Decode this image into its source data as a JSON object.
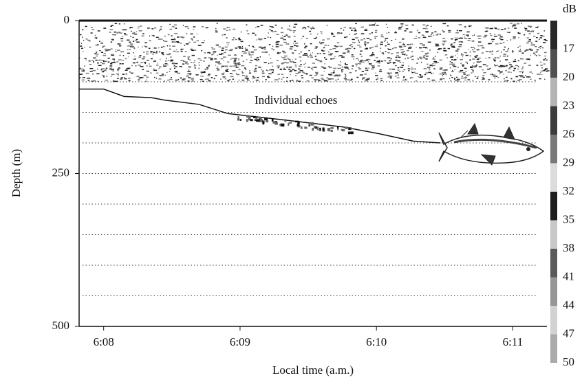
{
  "chart_data": {
    "type": "echogram",
    "ylabel": "Depth (m)",
    "xlabel": "Local time (a.m.)",
    "annotation": "Individual echoes",
    "ylim": [
      0,
      500
    ],
    "yticks": [
      0,
      250,
      500
    ],
    "inverted_y": true,
    "hgrid": [
      100,
      150,
      200,
      250,
      300,
      350,
      400,
      450
    ],
    "xlim": [
      367.82,
      371.25
    ],
    "xticks": [
      {
        "value": 368,
        "label": "6:08"
      },
      {
        "value": 369,
        "label": "6:09"
      },
      {
        "value": 370,
        "label": "6:10"
      },
      {
        "value": 371,
        "label": "6:11"
      }
    ],
    "series": [
      {
        "name": "track",
        "color": "#111111",
        "x": [
          367.82,
          368.0,
          368.15,
          368.35,
          368.45,
          368.7,
          368.91,
          369.11,
          369.46,
          369.76,
          370.02,
          370.27,
          370.47
        ],
        "values": [
          112,
          112,
          124,
          126,
          130,
          137,
          152,
          157,
          166,
          174,
          185,
          197,
          200
        ]
      }
    ],
    "colorbar": {
      "label": "dB",
      "lim": [
        14,
        50
      ],
      "ticks": [
        17,
        20,
        23,
        26,
        29,
        32,
        35,
        38,
        41,
        44,
        47,
        50
      ]
    }
  }
}
